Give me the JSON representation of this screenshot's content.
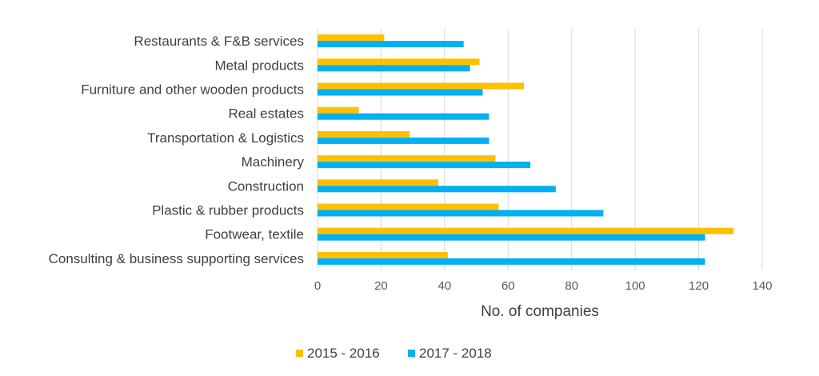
{
  "chart_data": {
    "type": "bar",
    "orientation": "horizontal",
    "categories": [
      "Restaurants & F&B services",
      "Metal products",
      "Furniture and other wooden products",
      "Real estates",
      "Transportation & Logistics",
      "Machinery",
      "Construction",
      "Plastic & rubber products",
      "Footwear, textile",
      "Consulting & business supporting services"
    ],
    "series": [
      {
        "name": "2015 - 2016",
        "color": "#FFC000",
        "values": [
          21,
          51,
          65,
          13,
          29,
          56,
          38,
          57,
          131,
          41
        ]
      },
      {
        "name": "2017 - 2018",
        "color": "#00B0F0",
        "values": [
          46,
          48,
          52,
          54,
          54,
          67,
          75,
          90,
          122,
          122
        ]
      }
    ],
    "xlabel": "No. of companies",
    "ylabel": "",
    "xlim": [
      0,
      140
    ],
    "xticks": [
      "0",
      "20",
      "40",
      "60",
      "80",
      "100",
      "120",
      "140"
    ],
    "grid": "vertical",
    "legend_position": "bottom"
  }
}
